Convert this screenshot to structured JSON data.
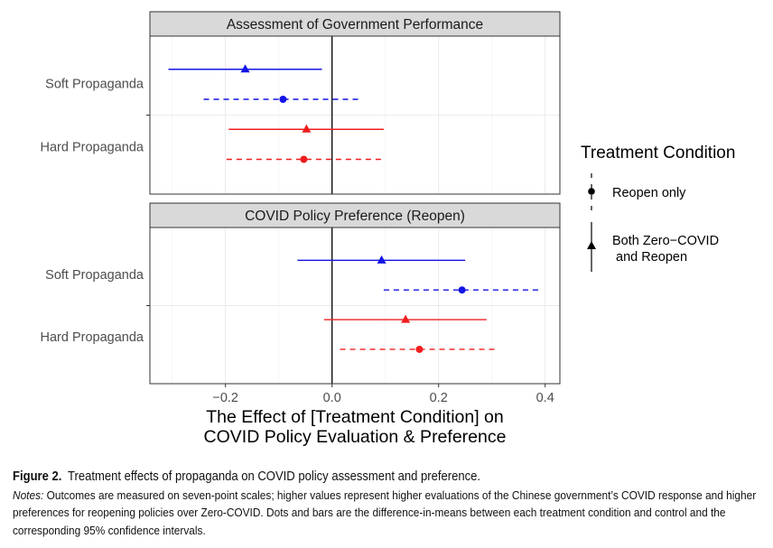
{
  "chart_data": {
    "type": "forest",
    "xlabel": [
      "The Effect of [Treatment Condition] on",
      "COVID Policy Evaluation & Preference"
    ],
    "xlim": [
      -0.33,
      0.43
    ],
    "xticks": [
      -0.2,
      0.0,
      0.2,
      0.4
    ],
    "xtick_labels": [
      "−0.2",
      "0.0",
      "0.2",
      "0.4"
    ],
    "grid": true,
    "reference_line": 0.0,
    "categories": [
      "Soft Propaganda",
      "Hard Propaganda"
    ],
    "legend": {
      "title": "Treatment Condition",
      "placement": "right",
      "entries": [
        {
          "label": "Reopen only",
          "marker": "circle",
          "linetype": "dashed"
        },
        {
          "label": "Both Zero−COVID\n and Reopen",
          "marker": "triangle",
          "linetype": "solid"
        }
      ]
    },
    "colors": {
      "Soft Propaganda": "#1414e6",
      "Hard Propaganda": "#f01e1e"
    },
    "panels": [
      {
        "title": "Assessment of Government Performance",
        "series": [
          {
            "category": "Soft Propaganda",
            "condition": "Both Zero-COVID and Reopen",
            "estimate": -0.163,
            "ci": [
              -0.307,
              -0.019
            ]
          },
          {
            "category": "Soft Propaganda",
            "condition": "Reopen only",
            "estimate": -0.092,
            "ci": [
              -0.241,
              0.049
            ]
          },
          {
            "category": "Hard Propaganda",
            "condition": "Both Zero-COVID and Reopen",
            "estimate": -0.048,
            "ci": [
              -0.194,
              0.097
            ]
          },
          {
            "category": "Hard Propaganda",
            "condition": "Reopen only",
            "estimate": -0.053,
            "ci": [
              -0.198,
              0.092
            ]
          }
        ]
      },
      {
        "title": "COVID Policy Preference (Reopen)",
        "series": [
          {
            "category": "Soft Propaganda",
            "condition": "Both Zero-COVID and Reopen",
            "estimate": 0.093,
            "ci": [
              -0.065,
              0.25
            ]
          },
          {
            "category": "Soft Propaganda",
            "condition": "Reopen only",
            "estimate": 0.244,
            "ci": [
              0.097,
              0.387
            ]
          },
          {
            "category": "Hard Propaganda",
            "condition": "Both Zero-COVID and Reopen",
            "estimate": 0.138,
            "ci": [
              -0.015,
              0.29
            ]
          },
          {
            "category": "Hard Propaganda",
            "condition": "Reopen only",
            "estimate": 0.164,
            "ci": [
              0.015,
              0.305
            ]
          }
        ]
      }
    ]
  },
  "caption": {
    "figure_label": "Figure 2.",
    "title": "Treatment effects of propaganda on COVID policy assessment and preference.",
    "notes_label": "Notes:",
    "notes_text": "Outcomes are measured on seven-point scales; higher values represent higher evaluations of the Chinese government’s COVID response and higher preferences for reopening policies over Zero-COVID. Dots and bars are the difference-in-means between each treatment condition and control and the corresponding 95% confidence intervals."
  }
}
